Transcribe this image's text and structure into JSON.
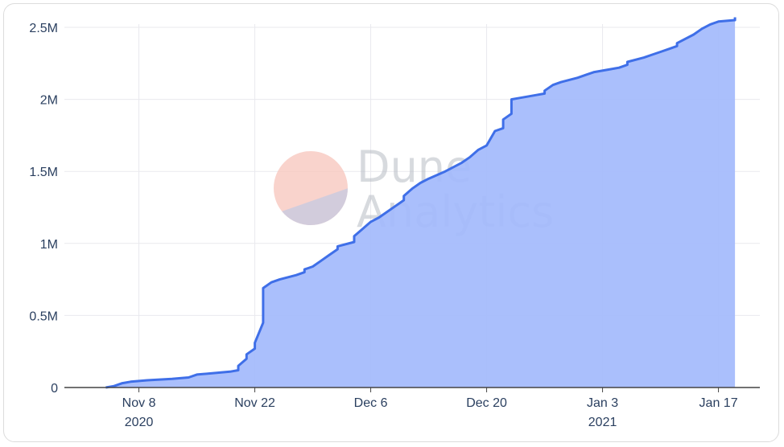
{
  "watermark": {
    "line1": "Dune",
    "line2": "Analytics",
    "logo_top_color": "#f7c4bb",
    "logo_bottom_color": "#c8cbe0"
  },
  "colors": {
    "line": "#3f6fe8",
    "fill": "#a3bafc",
    "grid": "#e9e9ee",
    "axis": "#444444"
  },
  "chart_data": {
    "type": "area",
    "title": "",
    "xlabel": "",
    "ylabel": "",
    "xlim": [
      "2020-10-30",
      "2021-01-22"
    ],
    "ylim": [
      0,
      2500000
    ],
    "grid": true,
    "y_ticks": [
      {
        "value": 0,
        "label": "0"
      },
      {
        "value": 500000,
        "label": "0.5M"
      },
      {
        "value": 1000000,
        "label": "1M"
      },
      {
        "value": 1500000,
        "label": "1.5M"
      },
      {
        "value": 2000000,
        "label": "2M"
      },
      {
        "value": 2500000,
        "label": "2.5M"
      }
    ],
    "x_ticks": [
      {
        "date": "2020-11-08",
        "label": "Nov 8",
        "sublabel": "2020"
      },
      {
        "date": "2020-11-22",
        "label": "Nov 22",
        "sublabel": ""
      },
      {
        "date": "2020-12-06",
        "label": "Dec 6",
        "sublabel": ""
      },
      {
        "date": "2020-12-20",
        "label": "Dec 20",
        "sublabel": ""
      },
      {
        "date": "2021-01-03",
        "label": "Jan 3",
        "sublabel": "2021"
      },
      {
        "date": "2021-01-17",
        "label": "Jan 17",
        "sublabel": ""
      }
    ],
    "series": [
      {
        "x": [
          "2020-11-04",
          "2020-11-05",
          "2020-11-06",
          "2020-11-07",
          "2020-11-09",
          "2020-11-12",
          "2020-11-14",
          "2020-11-15",
          "2020-11-17",
          "2020-11-19",
          "2020-11-20",
          "2020-11-20",
          "2020-11-21",
          "2020-11-21",
          "2020-11-22",
          "2020-11-22",
          "2020-11-23",
          "2020-11-23",
          "2020-11-24",
          "2020-11-25",
          "2020-11-27",
          "2020-11-28",
          "2020-11-28",
          "2020-11-29",
          "2020-11-30",
          "2020-12-01",
          "2020-12-02",
          "2020-12-02",
          "2020-12-04",
          "2020-12-04",
          "2020-12-05",
          "2020-12-06",
          "2020-12-07",
          "2020-12-08",
          "2020-12-09",
          "2020-12-10",
          "2020-12-10",
          "2020-12-11",
          "2020-12-12",
          "2020-12-13",
          "2020-12-15",
          "2020-12-17",
          "2020-12-18",
          "2020-12-19",
          "2020-12-20",
          "2020-12-21",
          "2020-12-22",
          "2020-12-22",
          "2020-12-23",
          "2020-12-23",
          "2020-12-24",
          "2020-12-26",
          "2020-12-27",
          "2020-12-27",
          "2020-12-28",
          "2020-12-29",
          "2020-12-31",
          "2021-01-01",
          "2021-01-02",
          "2021-01-04",
          "2021-01-05",
          "2021-01-06",
          "2021-01-06",
          "2021-01-08",
          "2021-01-09",
          "2021-01-10",
          "2021-01-11",
          "2021-01-12",
          "2021-01-12",
          "2021-01-14",
          "2021-01-15",
          "2021-01-16",
          "2021-01-17",
          "2021-01-19",
          "2021-01-19"
        ],
        "y": [
          0,
          10000,
          30000,
          40000,
          50000,
          60000,
          70000,
          90000,
          100000,
          110000,
          120000,
          150000,
          200000,
          230000,
          270000,
          310000,
          450000,
          690000,
          730000,
          750000,
          780000,
          800000,
          820000,
          840000,
          880000,
          920000,
          960000,
          980000,
          1010000,
          1050000,
          1100000,
          1150000,
          1180000,
          1220000,
          1260000,
          1300000,
          1330000,
          1380000,
          1420000,
          1450000,
          1500000,
          1560000,
          1600000,
          1650000,
          1680000,
          1780000,
          1800000,
          1860000,
          1900000,
          2000000,
          2010000,
          2030000,
          2040000,
          2060000,
          2100000,
          2120000,
          2150000,
          2170000,
          2190000,
          2210000,
          2220000,
          2240000,
          2260000,
          2290000,
          2310000,
          2330000,
          2350000,
          2370000,
          2390000,
          2450000,
          2490000,
          2520000,
          2540000,
          2550000,
          2570000
        ]
      }
    ]
  }
}
